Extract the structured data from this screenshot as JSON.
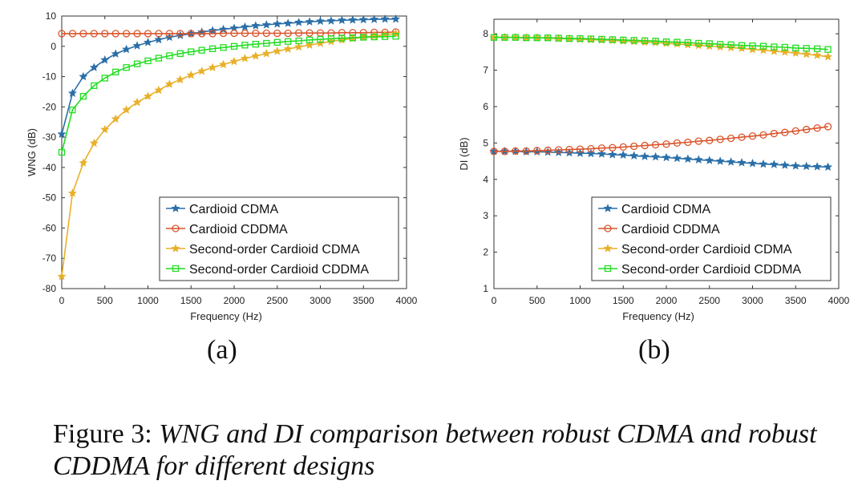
{
  "chart_data": [
    {
      "type": "line",
      "panel_label": "(a)",
      "xlabel": "Frequency (Hz)",
      "ylabel": "WNG (dB)",
      "xlim": [
        0,
        4000
      ],
      "ylim": [
        -80,
        10
      ],
      "xticks": [
        0,
        500,
        1000,
        1500,
        2000,
        2500,
        3000,
        3500,
        4000
      ],
      "yticks": [
        -80,
        -70,
        -60,
        -50,
        -40,
        -30,
        -20,
        -10,
        0,
        10
      ],
      "legend_position": "bottom-right",
      "grid": false,
      "x": [
        0,
        125,
        250,
        375,
        500,
        625,
        750,
        875,
        1000,
        1125,
        1250,
        1375,
        1500,
        1625,
        1750,
        1875,
        2000,
        2125,
        2250,
        2375,
        2500,
        2625,
        2750,
        2875,
        3000,
        3125,
        3250,
        3375,
        3500,
        3625,
        3750,
        3875
      ],
      "series": [
        {
          "name": "Cardioid CDMA",
          "color": "#2a6fa8",
          "marker": "star",
          "values": [
            -29,
            -15.5,
            -10,
            -7,
            -4.5,
            -2.5,
            -1,
            0.2,
            1.3,
            2.2,
            3,
            3.6,
            4.2,
            4.7,
            5.2,
            5.6,
            6,
            6.4,
            6.8,
            7.1,
            7.4,
            7.6,
            7.9,
            8.1,
            8.3,
            8.4,
            8.6,
            8.7,
            8.8,
            8.9,
            9,
            9
          ]
        },
        {
          "name": "Cardioid CDDMA",
          "color": "#d9542b",
          "marker": "circle",
          "values": [
            4.2,
            4.2,
            4.2,
            4.2,
            4.2,
            4.2,
            4.2,
            4.2,
            4.2,
            4.2,
            4.2,
            4.2,
            4.2,
            4.2,
            4.2,
            4.3,
            4.3,
            4.3,
            4.3,
            4.3,
            4.3,
            4.3,
            4.4,
            4.4,
            4.4,
            4.4,
            4.5,
            4.5,
            4.5,
            4.6,
            4.6,
            4.7
          ]
        },
        {
          "name": "Second-order Cardioid CDMA",
          "color": "#e8b02a",
          "marker": "star",
          "values": [
            -76,
            -48.5,
            -38.5,
            -32,
            -27.5,
            -24,
            -21,
            -18.5,
            -16.5,
            -14.5,
            -12.5,
            -11,
            -9.5,
            -8.2,
            -7,
            -6,
            -5,
            -4,
            -3.2,
            -2.4,
            -1.6,
            -0.9,
            -0.2,
            0.4,
            1,
            1.6,
            2.1,
            2.6,
            3,
            3.4,
            3.8,
            4.2
          ]
        },
        {
          "name": "Second-order Cardioid CDDMA",
          "color": "#22dd22",
          "marker": "square",
          "values": [
            -35,
            -21,
            -16.5,
            -13,
            -10.5,
            -8.5,
            -7,
            -5.8,
            -4.8,
            -3.9,
            -3.1,
            -2.4,
            -1.8,
            -1.3,
            -0.8,
            -0.4,
            0,
            0.4,
            0.7,
            1,
            1.3,
            1.6,
            1.8,
            2.1,
            2.3,
            2.5,
            2.7,
            2.8,
            3,
            3.1,
            3.2,
            3.3
          ]
        }
      ]
    },
    {
      "type": "line",
      "panel_label": "(b)",
      "xlabel": "Frequency (Hz)",
      "ylabel": "DI (dB)",
      "xlim": [
        0,
        4000
      ],
      "ylim": [
        1,
        8.4
      ],
      "xticks": [
        0,
        500,
        1000,
        1500,
        2000,
        2500,
        3000,
        3500,
        4000
      ],
      "yticks": [
        1,
        2,
        3,
        4,
        5,
        6,
        7,
        8
      ],
      "legend_position": "bottom-right",
      "grid": false,
      "x": [
        0,
        125,
        250,
        375,
        500,
        625,
        750,
        875,
        1000,
        1125,
        1250,
        1375,
        1500,
        1625,
        1750,
        1875,
        2000,
        2125,
        2250,
        2375,
        2500,
        2625,
        2750,
        2875,
        3000,
        3125,
        3250,
        3375,
        3500,
        3625,
        3750,
        3875
      ],
      "series": [
        {
          "name": "Cardioid CDMA",
          "color": "#2a6fa8",
          "marker": "star",
          "values": [
            4.77,
            4.77,
            4.77,
            4.76,
            4.76,
            4.75,
            4.74,
            4.73,
            4.72,
            4.71,
            4.7,
            4.68,
            4.67,
            4.65,
            4.63,
            4.62,
            4.6,
            4.58,
            4.56,
            4.54,
            4.52,
            4.5,
            4.48,
            4.46,
            4.44,
            4.42,
            4.41,
            4.39,
            4.37,
            4.36,
            4.35,
            4.34
          ]
        },
        {
          "name": "Cardioid CDDMA",
          "color": "#d9542b",
          "marker": "circle",
          "values": [
            4.77,
            4.77,
            4.78,
            4.78,
            4.79,
            4.8,
            4.81,
            4.82,
            4.83,
            4.84,
            4.86,
            4.87,
            4.89,
            4.91,
            4.93,
            4.95,
            4.97,
            5,
            5.02,
            5.05,
            5.07,
            5.1,
            5.13,
            5.16,
            5.19,
            5.22,
            5.26,
            5.29,
            5.33,
            5.37,
            5.41,
            5.45
          ]
        },
        {
          "name": "Second-order Cardioid CDMA",
          "color": "#e8b02a",
          "marker": "star",
          "values": [
            7.9,
            7.9,
            7.9,
            7.89,
            7.89,
            7.88,
            7.87,
            7.86,
            7.85,
            7.84,
            7.83,
            7.82,
            7.8,
            7.79,
            7.77,
            7.76,
            7.74,
            7.72,
            7.7,
            7.68,
            7.66,
            7.64,
            7.62,
            7.6,
            7.57,
            7.55,
            7.52,
            7.5,
            7.47,
            7.44,
            7.41,
            7.37
          ]
        },
        {
          "name": "Second-order Cardioid CDDMA",
          "color": "#22dd22",
          "marker": "square",
          "values": [
            7.9,
            7.9,
            7.9,
            7.89,
            7.89,
            7.89,
            7.88,
            7.87,
            7.87,
            7.86,
            7.85,
            7.84,
            7.83,
            7.82,
            7.81,
            7.8,
            7.78,
            7.77,
            7.76,
            7.74,
            7.73,
            7.71,
            7.7,
            7.68,
            7.67,
            7.66,
            7.64,
            7.63,
            7.61,
            7.6,
            7.59,
            7.57
          ]
        }
      ]
    }
  ],
  "caption": {
    "label": "Figure 3:",
    "text": "WNG and DI comparison between robust CDMA and robust CDDMA for different designs"
  }
}
